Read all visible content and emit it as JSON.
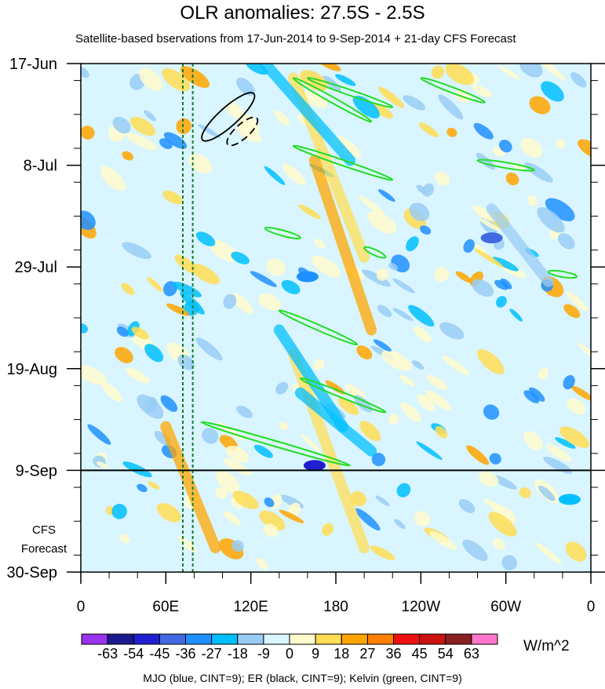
{
  "chart_data": {
    "type": "heatmap",
    "title": "OLR anomalies: 27.5S - 2.5S",
    "subtitle": "Satellite-based bservations from 17-Jun-2014 to 9-Sep-2014 + 21-day CFS Forecast",
    "x_tick_labels": [
      "0",
      "60E",
      "120E",
      "180",
      "120W",
      "60W",
      "0"
    ],
    "x_ticks_deg": [
      0,
      60,
      120,
      180,
      240,
      300,
      360
    ],
    "y_tick_labels": [
      "17-Jun",
      "8-Jul",
      "29-Jul",
      "19-Aug",
      "9-Sep",
      "30-Sep"
    ],
    "y_ticks_day": [
      0,
      21,
      42,
      63,
      84,
      105
    ],
    "forecast_start_label": "9-Sep",
    "forecast_label_lines": [
      "CFS",
      "Forecast"
    ],
    "reference_longitudes_deg": [
      72,
      79
    ],
    "colorbar": {
      "levels": [
        "-63",
        "-54",
        "-45",
        "-36",
        "-27",
        "-18",
        "-9",
        "0",
        "9",
        "18",
        "27",
        "36",
        "45",
        "54",
        "63"
      ],
      "colors": [
        "#9933ee",
        "#1a1a8c",
        "#1f1fd0",
        "#4169e1",
        "#1e90ff",
        "#00bfff",
        "#99ccf5",
        "#d9f5ff",
        "#fffccc",
        "#ffdd55",
        "#ffa500",
        "#ff7f00",
        "#ee1111",
        "#cc1111",
        "#8b2020",
        "#ff77cc"
      ],
      "units": "W/m^2"
    },
    "footer": "MJO (blue, CINT=9); ER (black, CINT=9); Kelvin (green, CINT=9)"
  }
}
